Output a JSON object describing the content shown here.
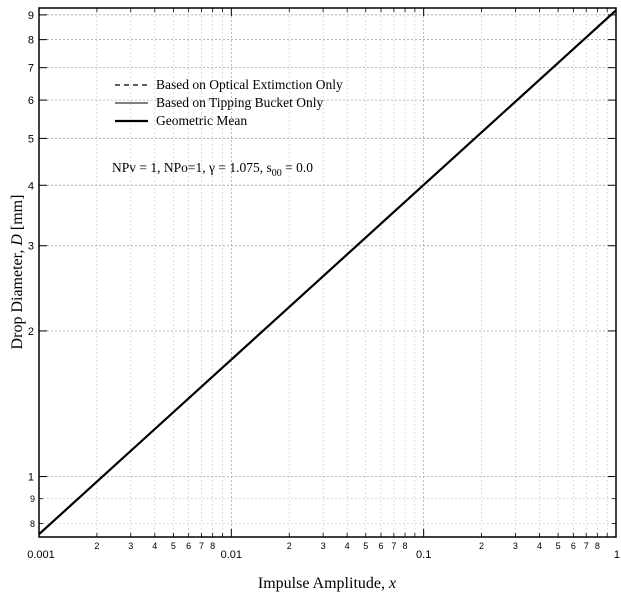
{
  "chart_data": {
    "type": "line",
    "title": "",
    "xlabel": "Impulse Amplitude, ",
    "xlabel_var": "x",
    "ylabel": "Drop Diameter, ",
    "ylabel_var": "D",
    "ylabel_unit": " [mm]",
    "x_scale": "log",
    "y_scale": "log",
    "xlim": [
      0.001,
      1
    ],
    "ylim": [
      0.75,
      9.3
    ],
    "grid": true,
    "x_major_ticks": [
      {
        "value": 0.001,
        "label": "0.001"
      },
      {
        "value": 0.01,
        "label": "0.01"
      },
      {
        "value": 0.1,
        "label": "0.1"
      },
      {
        "value": 1,
        "label": "1"
      }
    ],
    "x_minor_labels": [
      "2",
      "3",
      "4",
      "5",
      "6",
      "7",
      "8"
    ],
    "y_major_ticks": [
      {
        "value": 1,
        "label": "1"
      },
      {
        "value": 2,
        "label": "2"
      },
      {
        "value": 3,
        "label": "3"
      },
      {
        "value": 4,
        "label": "4"
      },
      {
        "value": 5,
        "label": "5"
      },
      {
        "value": 6,
        "label": "6"
      },
      {
        "value": 7,
        "label": "7"
      },
      {
        "value": 8,
        "label": "8"
      },
      {
        "value": 9,
        "label": "9"
      }
    ],
    "y_minor_ticks": [
      {
        "value": 0.8,
        "label": "8"
      },
      {
        "value": 0.9,
        "label": "9"
      }
    ],
    "legend": {
      "position": "top-left",
      "entries": [
        {
          "name": "Based on Optical Extimction Only",
          "style": "dashed"
        },
        {
          "name": "Based on Tipping Bucket Only",
          "style": "thin"
        },
        {
          "name": "Geometric Mean",
          "style": "thick"
        }
      ]
    },
    "parameters_text": {
      "main": "NPv = 1, NPo=1, γ = 1.075, s",
      "subscript": "00",
      "tail": " = 0.0"
    },
    "series": [
      {
        "name": "Based on Optical Extimction Only",
        "style": "dashed",
        "x": [
          0.001,
          1
        ],
        "y": [
          0.76,
          9.2
        ]
      },
      {
        "name": "Based on Tipping Bucket Only",
        "style": "thin",
        "x": [
          0.001,
          1
        ],
        "y": [
          0.76,
          9.2
        ]
      },
      {
        "name": "Geometric Mean",
        "style": "thick",
        "x": [
          0.001,
          1
        ],
        "y": [
          0.76,
          9.2
        ]
      }
    ]
  }
}
